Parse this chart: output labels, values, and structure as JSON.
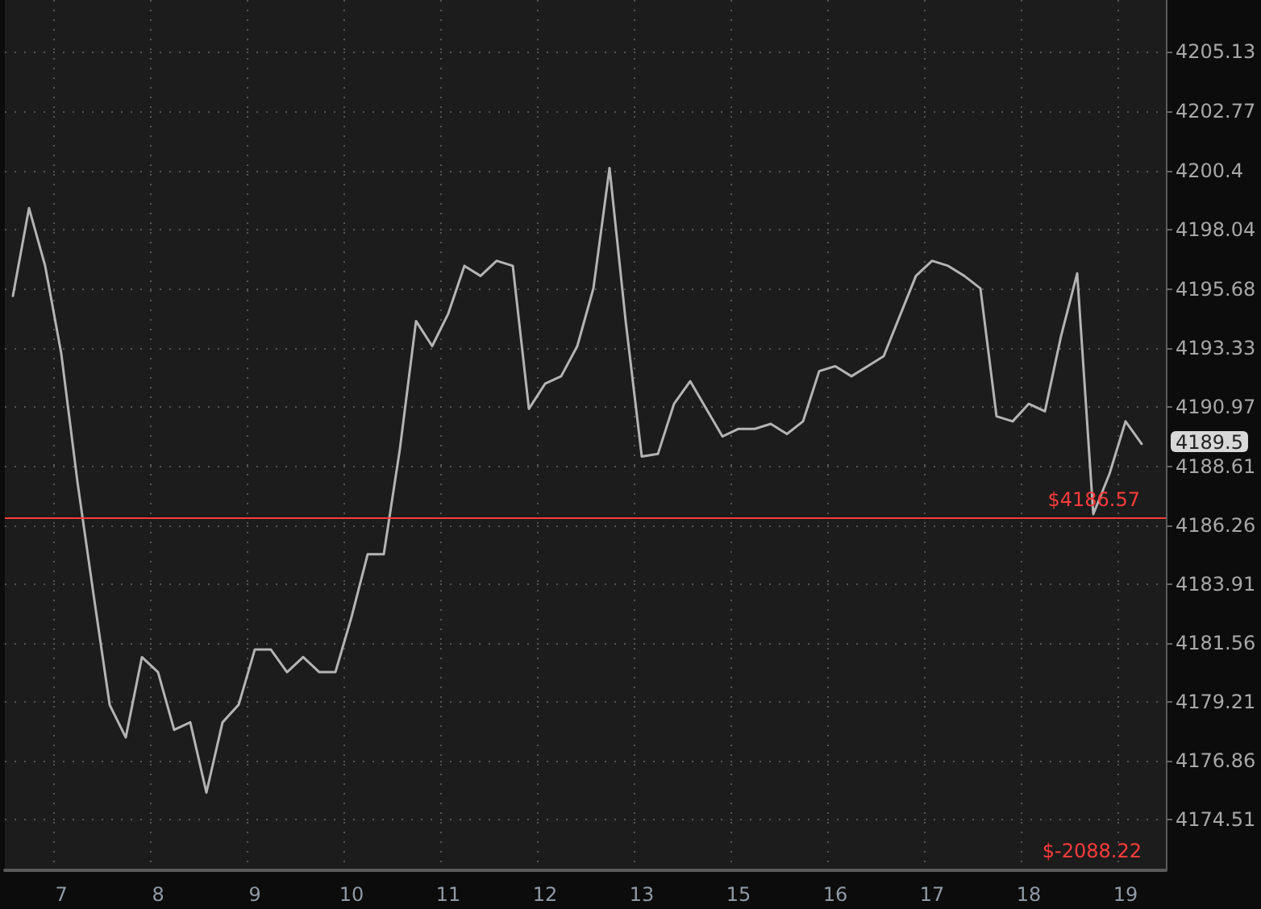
{
  "chart_data": {
    "type": "line",
    "categories": [
      null,
      null,
      null,
      "7",
      null,
      null,
      null,
      null,
      null,
      "8",
      null,
      null,
      null,
      null,
      null,
      "9",
      null,
      null,
      null,
      null,
      null,
      "10",
      null,
      null,
      null,
      null,
      null,
      "11",
      null,
      null,
      null,
      null,
      null,
      "12",
      null,
      null,
      null,
      null,
      null,
      "13",
      null,
      null,
      null,
      null,
      null,
      "15",
      null,
      null,
      null,
      null,
      null,
      "16",
      null,
      null,
      null,
      null,
      null,
      "17",
      null,
      null,
      null,
      null,
      null,
      "18",
      null,
      null,
      null,
      null,
      null,
      "19",
      null,
      null
    ],
    "series": [
      {
        "color": "#b4b4b4",
        "values": [
          4195.4,
          4198.9,
          4196.6,
          4193.1,
          4188.0,
          4183.5,
          4179.1,
          4177.8,
          4181.0,
          4180.4,
          4178.1,
          4178.4,
          4175.6,
          4178.4,
          4179.1,
          4181.3,
          4181.3,
          4180.4,
          4181.0,
          4180.4,
          4180.4,
          4182.6,
          4185.1,
          4185.1,
          4189.3,
          4194.4,
          4193.4,
          4194.7,
          4196.6,
          4196.2,
          4196.8,
          4196.6,
          4190.9,
          4191.9,
          4192.2,
          4193.4,
          4195.7,
          4200.5,
          4194.4,
          4189.0,
          4189.1,
          4191.1,
          4192.0,
          4190.9,
          4189.8,
          4190.1,
          4190.1,
          4190.3,
          4189.9,
          4190.4,
          4192.4,
          4192.6,
          4192.2,
          4192.6,
          4193.0,
          4194.6,
          4196.2,
          4196.8,
          4196.6,
          4196.2,
          4195.7,
          4190.6,
          4190.4,
          4191.1,
          4190.8,
          4193.8,
          4196.3,
          4186.7,
          4188.3,
          4190.4,
          4189.5,
          null
        ]
      }
    ],
    "ylim": [
      4172.5,
      4207.2
    ],
    "yticks": [
      4174.51,
      4176.86,
      4179.21,
      4181.56,
      4183.91,
      4186.26,
      4188.61,
      4190.97,
      4193.33,
      4195.68,
      4198.04,
      4200.4,
      4202.77,
      4205.13
    ],
    "ref_lines": [
      {
        "axis": "y",
        "value": 4186.57,
        "label": "$4186.57",
        "color": "#ff3b3b"
      }
    ],
    "annotations": [
      "4189.5",
      "$-2088.22"
    ],
    "grid": true,
    "marker": "none",
    "line_style": "solid"
  }
}
